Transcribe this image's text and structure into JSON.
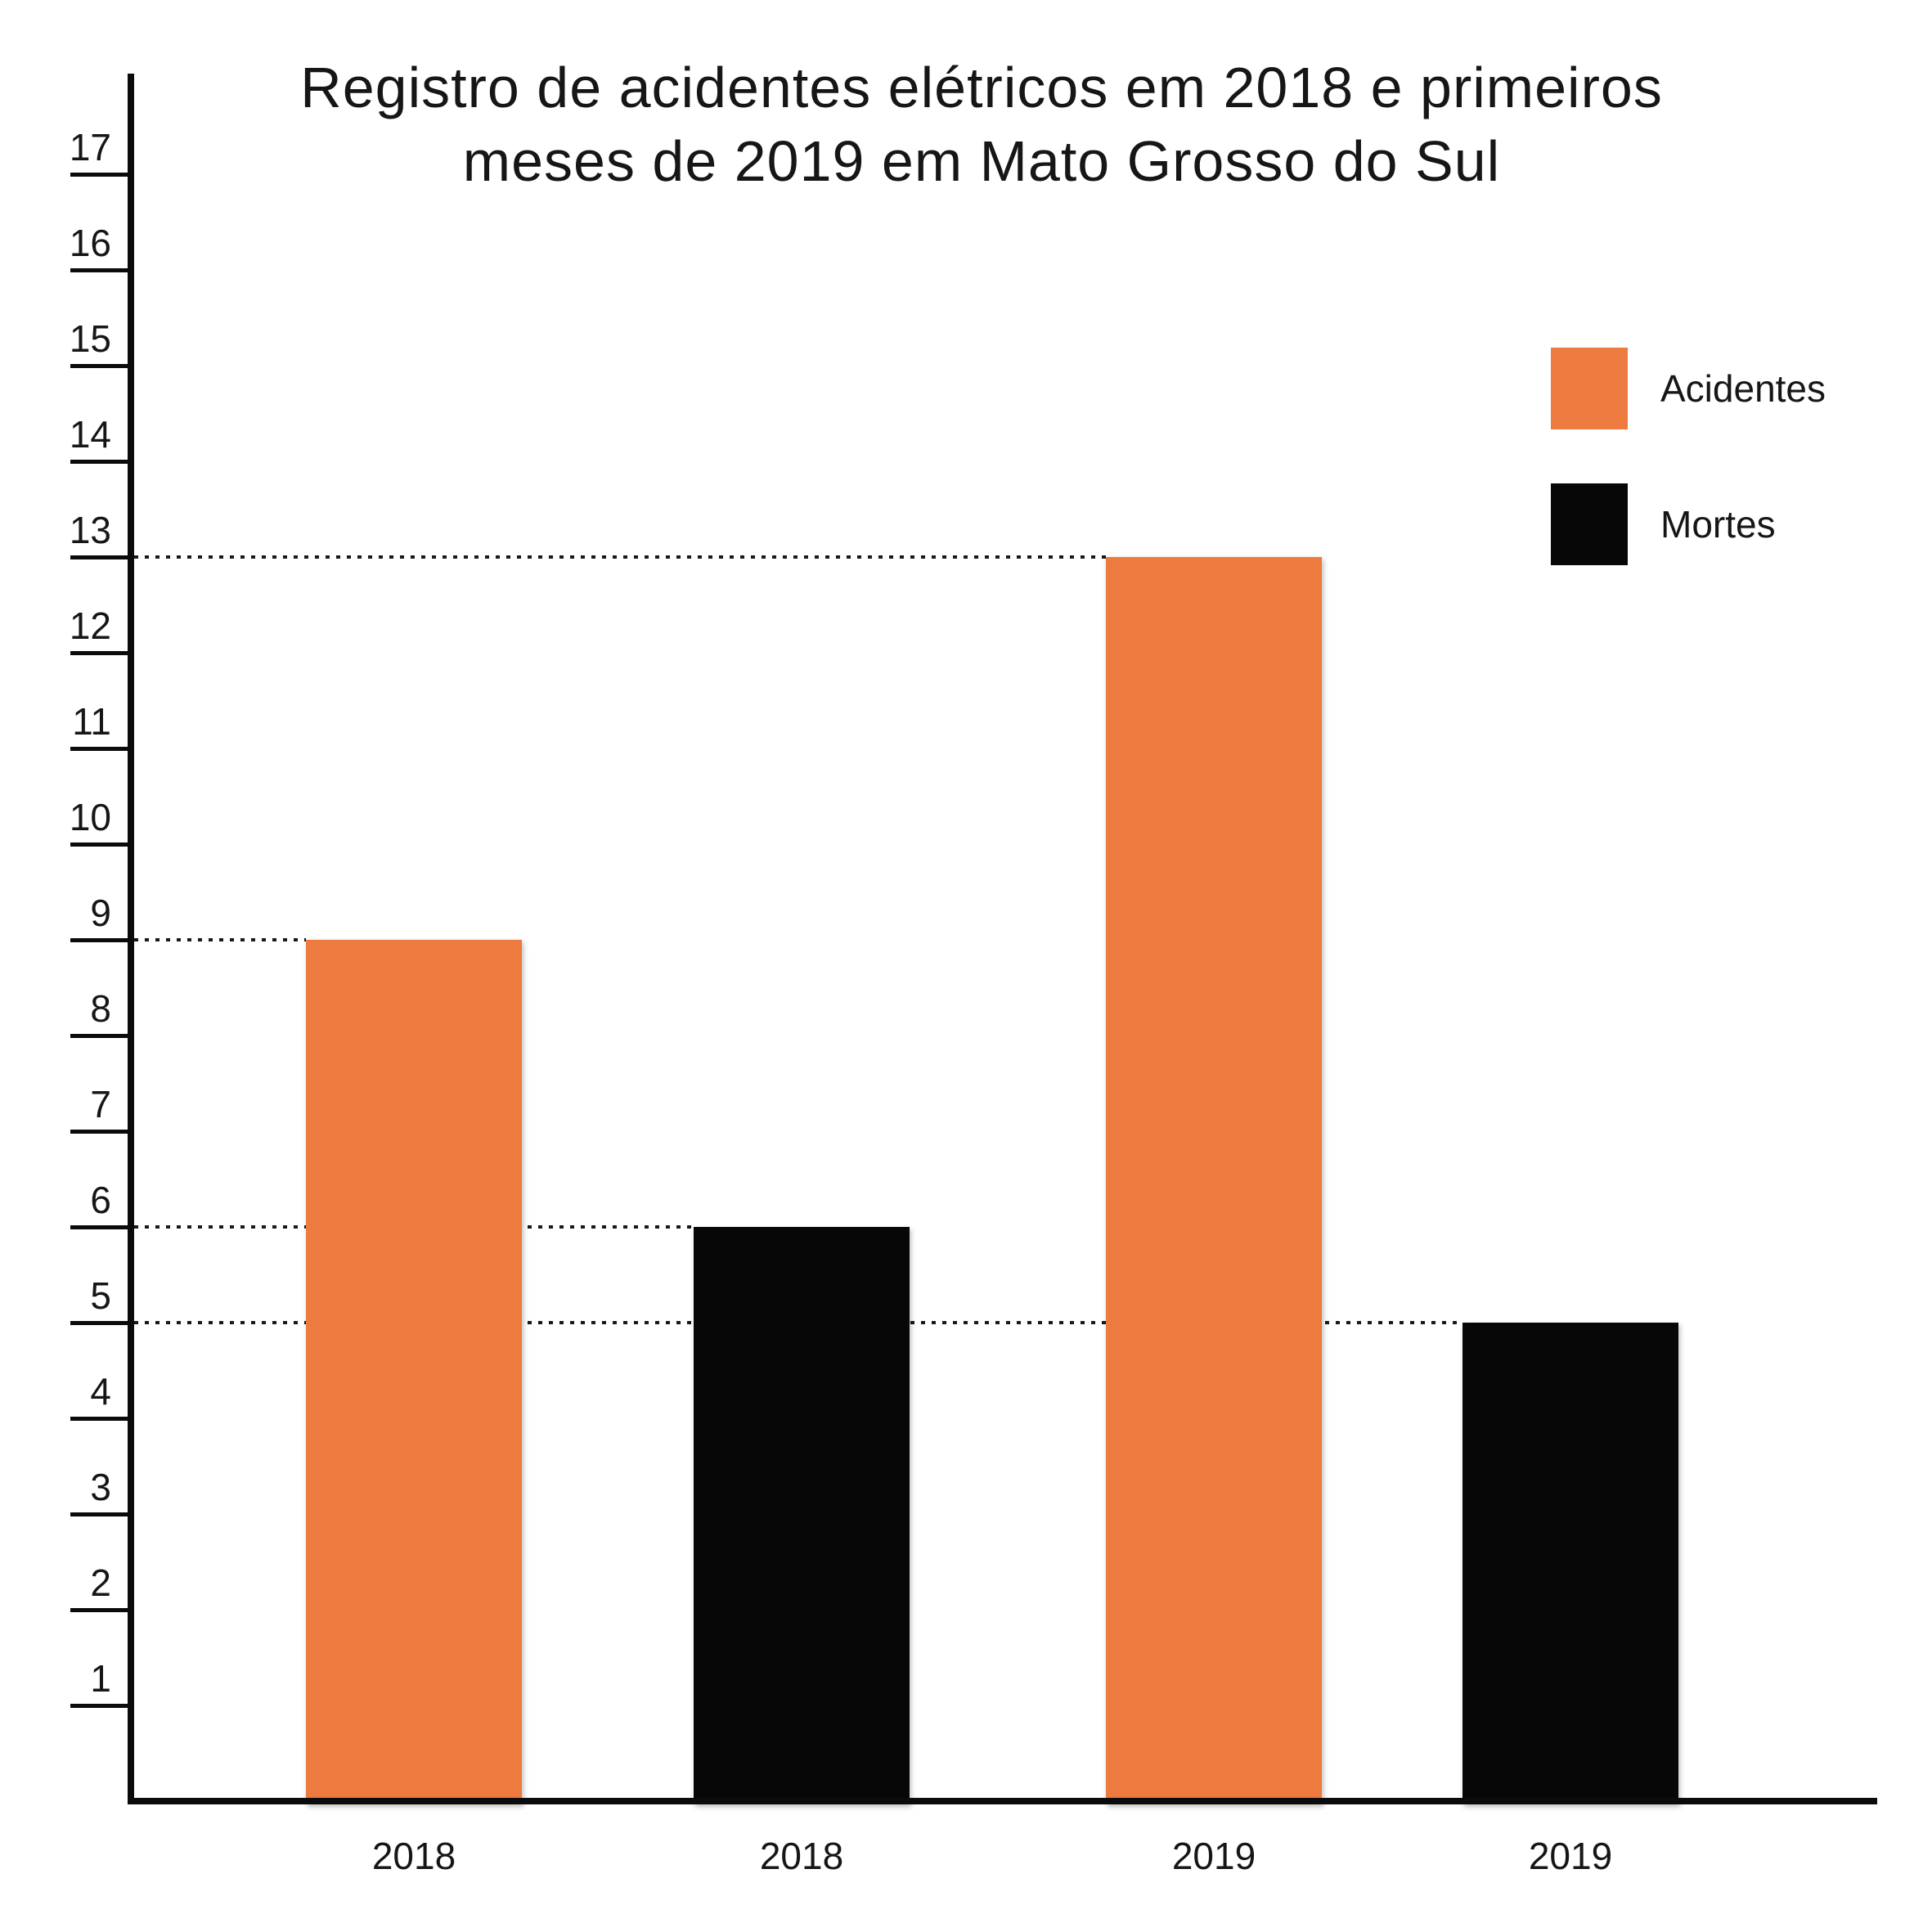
{
  "title": {
    "line1": "Registro de acidentes elétricos em 2018 e primeiros",
    "line2": "meses de 2019 em Mato Grosso do Sul"
  },
  "chart_data": {
    "type": "bar",
    "title": "Registro de acidentes elétricos em 2018 e primeiros meses de 2019 em Mato Grosso do Sul",
    "categories": [
      "2018",
      "2018",
      "2019",
      "2019"
    ],
    "bars": [
      {
        "category": "2018",
        "series": "Acidentes",
        "value": 9,
        "color": "#ED7A3E"
      },
      {
        "category": "2018",
        "series": "Mortes",
        "value": 6,
        "color": "#070707"
      },
      {
        "category": "2019",
        "series": "Acidentes",
        "value": 13,
        "color": "#ED7A3E"
      },
      {
        "category": "2019",
        "series": "Mortes",
        "value": 5,
        "color": "#070707"
      }
    ],
    "series": [
      {
        "name": "Acidentes",
        "color": "#ED7A3E",
        "values": [
          9,
          13
        ]
      },
      {
        "name": "Mortes",
        "color": "#070707",
        "values": [
          6,
          5
        ]
      }
    ],
    "legend": [
      {
        "label": "Acidentes",
        "color": "#ED7A3E"
      },
      {
        "label": "Mortes",
        "color": "#070707"
      }
    ],
    "y_ticks": [
      1,
      2,
      3,
      4,
      5,
      6,
      7,
      8,
      9,
      10,
      11,
      12,
      13,
      14,
      15,
      16,
      17
    ],
    "ylim": [
      0,
      18
    ],
    "xlabel": "",
    "ylabel": "",
    "grid": "off",
    "gridlines": {
      "style": "dotted",
      "at_values": [
        9,
        6,
        13,
        5
      ],
      "note": "each dotted line runs from the y-axis to the left edge of the bar whose top equals that value"
    },
    "legend_position": "right-top"
  }
}
